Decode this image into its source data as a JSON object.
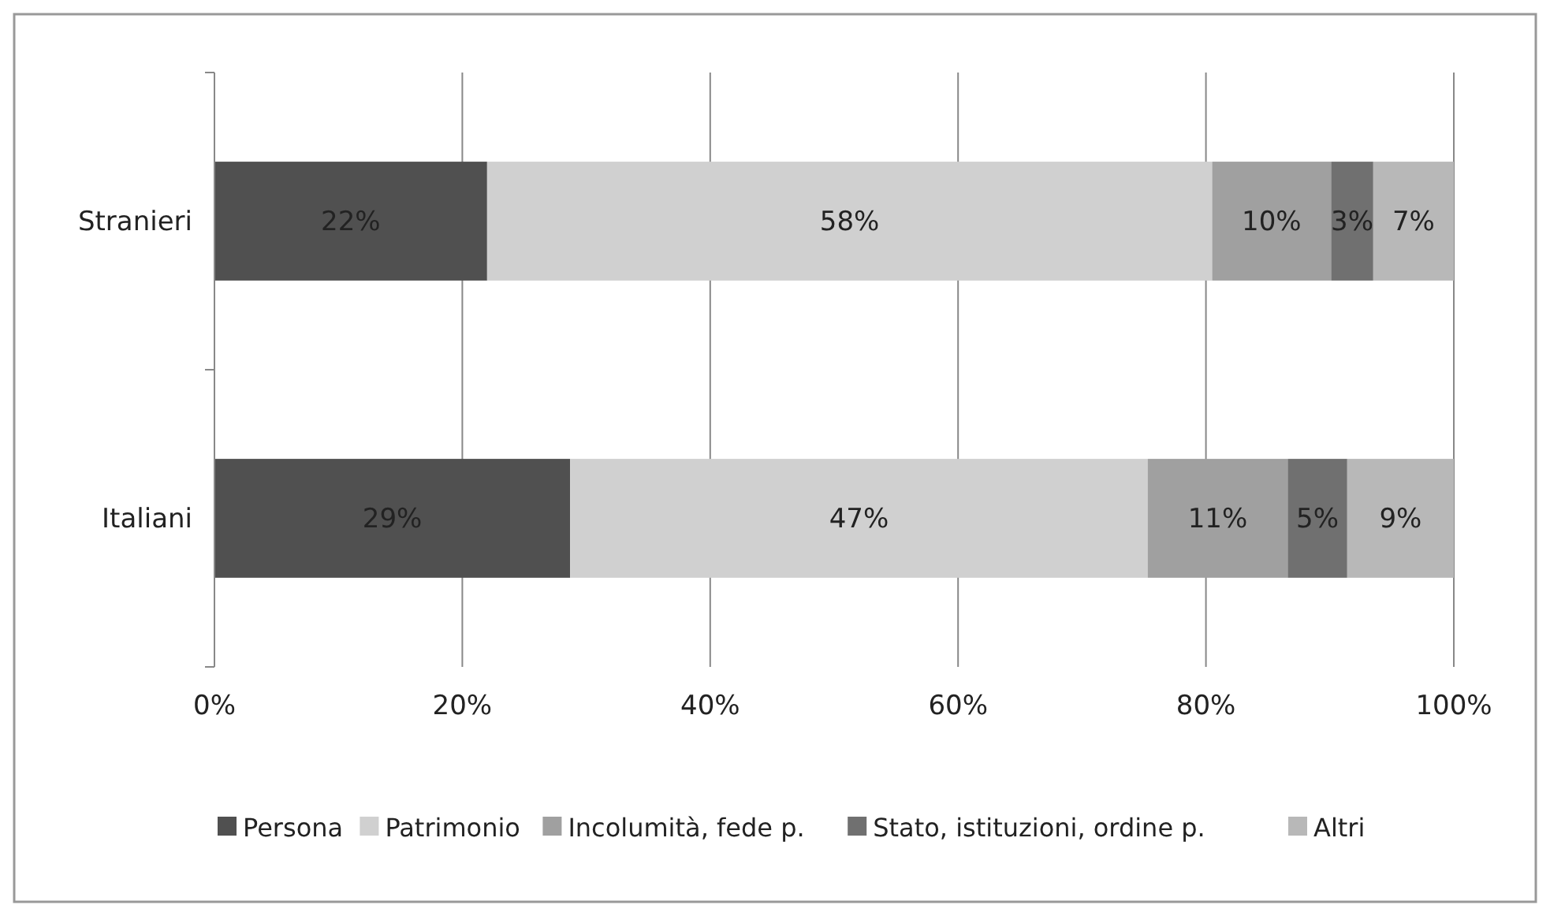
{
  "chart_data": {
    "type": "bar",
    "orientation": "horizontal",
    "stacked": true,
    "categories": [
      "Stranieri",
      "Italiani"
    ],
    "series": [
      {
        "name": "Persona",
        "color": "#505050",
        "values": [
          22,
          28.7
        ],
        "value_labels": [
          "22%",
          "29%"
        ]
      },
      {
        "name": "Patrimonio",
        "color": "#d0d0d0",
        "values": [
          58.5,
          46.6
        ],
        "value_labels": [
          "58%",
          "47%"
        ]
      },
      {
        "name": "Incolumità, fede p.",
        "color": "#a0a0a0",
        "values": [
          9.6,
          11.3
        ],
        "value_labels": [
          "10%",
          "11%"
        ]
      },
      {
        "name": "Stato, istituzioni, ordine p.",
        "color": "#707070",
        "values": [
          3.4,
          4.8
        ],
        "value_labels": [
          "3%",
          "5%"
        ]
      },
      {
        "name": "Altri",
        "color": "#b8b8b8",
        "values": [
          6.5,
          8.6
        ],
        "value_labels": [
          "7%",
          "9%"
        ]
      }
    ],
    "xlim": [
      0,
      100
    ],
    "xticks": [
      {
        "value": 0,
        "label": "0%"
      },
      {
        "value": 20,
        "label": "20%"
      },
      {
        "value": 40,
        "label": "40%"
      },
      {
        "value": 60,
        "label": "60%"
      },
      {
        "value": 80,
        "label": "80%"
      },
      {
        "value": 100,
        "label": "100%"
      }
    ],
    "grid": "x",
    "legend": "bottom"
  }
}
